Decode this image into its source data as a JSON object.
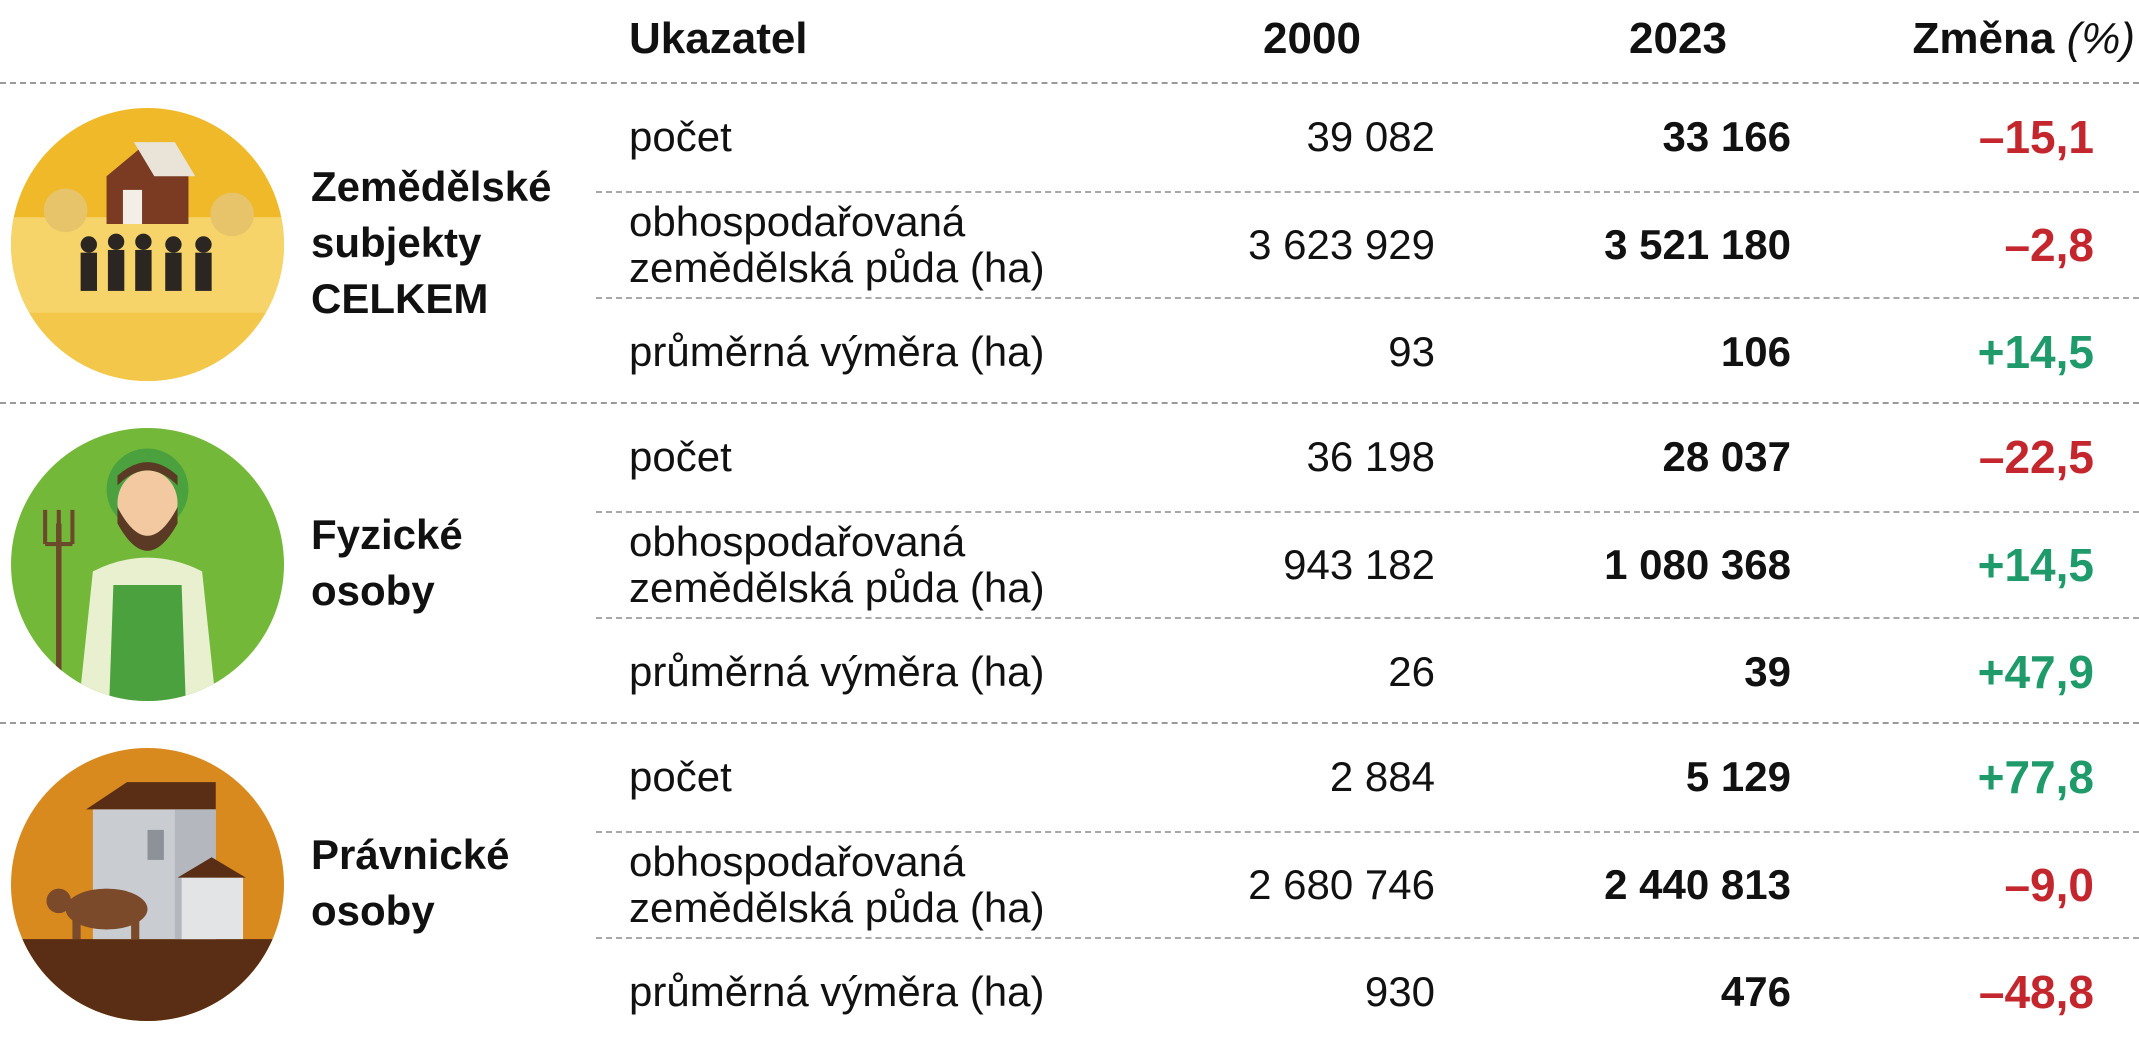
{
  "header": {
    "indicator": "Ukazatel",
    "year1": "2000",
    "year2": "2023",
    "change": "Změna",
    "change_unit": "(%)"
  },
  "groups": [
    {
      "label_lines": [
        "Zemědělské",
        "subjekty",
        "CELKEM"
      ],
      "rows": [
        [
          "počet",
          "39 082",
          "33 166",
          "–15,1"
        ],
        [
          "obhospodařovaná\nzemědělská půda (ha)",
          "3 623 929",
          "3 521 180",
          "–2,8"
        ],
        [
          "průměrná výměra (ha)",
          "93",
          "106",
          "+14,5"
        ]
      ]
    },
    {
      "label_lines": [
        "Fyzické",
        "osoby"
      ],
      "rows": [
        [
          "počet",
          "36 198",
          "28 037",
          "–22,5"
        ],
        [
          "obhospodařovaná\nzemědělská půda (ha)",
          "943 182",
          "1 080 368",
          "+14,5"
        ],
        [
          "průměrná výměra (ha)",
          "26",
          "39",
          "+47,9"
        ]
      ]
    },
    {
      "label_lines": [
        "Právnické",
        "osoby"
      ],
      "rows": [
        [
          "počet",
          "2 884",
          "5 129",
          "+77,8"
        ],
        [
          "obhospodařovaná\nzemědělská půda (ha)",
          "2 680 746",
          "2 440 813",
          "–9,0"
        ],
        [
          "průměrná výměra (ha)",
          "930",
          "476",
          "–48,8"
        ]
      ]
    }
  ]
}
